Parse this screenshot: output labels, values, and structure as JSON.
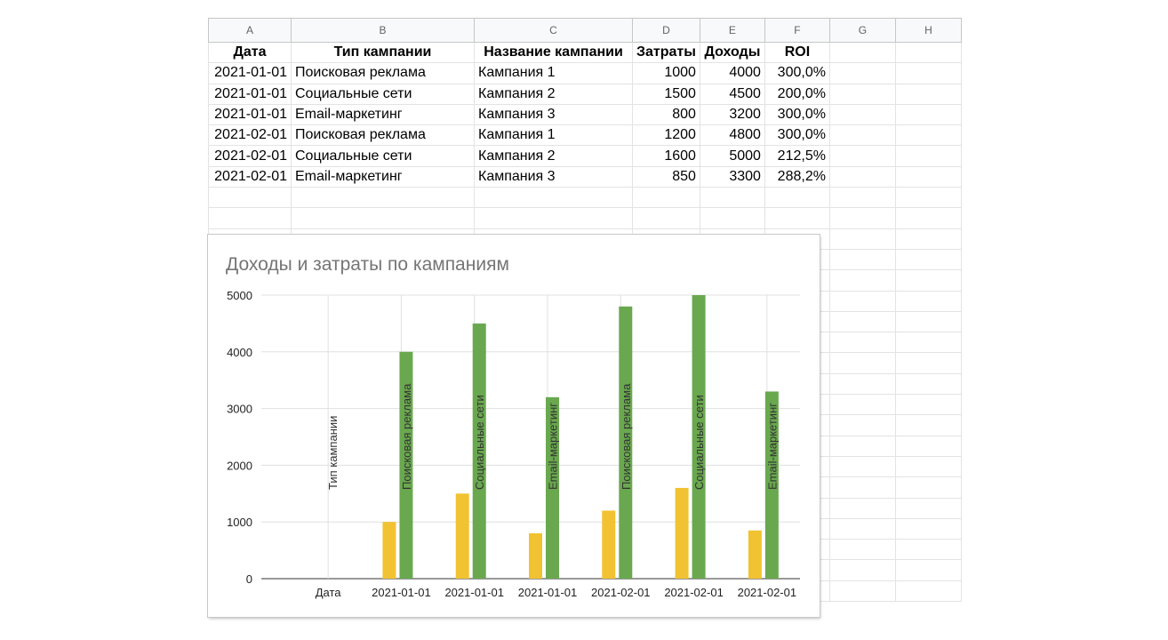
{
  "sheet": {
    "columns": [
      "A",
      "B",
      "C",
      "D",
      "E",
      "F",
      "G",
      "H"
    ],
    "headers": [
      "Дата",
      "Тип кампании",
      "Название кампании",
      "Затраты",
      "Доходы",
      "ROI"
    ],
    "rows": [
      [
        "2021-01-01",
        "Поисковая реклама",
        "Кампания 1",
        "1000",
        "4000",
        "300,0%"
      ],
      [
        "2021-01-01",
        "Социальные сети",
        "Кампания 2",
        "1500",
        "4500",
        "200,0%"
      ],
      [
        "2021-01-01",
        "Email-маркетинг",
        "Кампания 3",
        "800",
        "3200",
        "300,0%"
      ],
      [
        "2021-02-01",
        "Поисковая реклама",
        "Кампания 1",
        "1200",
        "4800",
        "300,0%"
      ],
      [
        "2021-02-01",
        "Социальные сети",
        "Кампания 2",
        "1600",
        "5000",
        "212,5%"
      ],
      [
        "2021-02-01",
        "Email-маркетинг",
        "Кампания 3",
        "850",
        "3300",
        "288,2%"
      ]
    ]
  },
  "colors": {
    "costs": "#f1c232",
    "revenue": "#6aa84f",
    "gridline": "#e0e0e0",
    "axis": "#333333"
  },
  "chart_data": {
    "type": "bar",
    "title": "Доходы и затраты по кампаниям",
    "categories": [
      "Дата",
      "2021-01-01",
      "2021-01-01",
      "2021-01-01",
      "2021-02-01",
      "2021-02-01",
      "2021-02-01"
    ],
    "bar_labels": [
      "Тип кампании",
      "Поисковая реклама",
      "Социальные сети",
      "Email-маркетинг",
      "Поисковая реклама",
      "Социальные сети",
      "Email-маркетинг"
    ],
    "series": [
      {
        "values": [
          null,
          1000,
          1500,
          800,
          1200,
          1600,
          850
        ]
      },
      {
        "values": [
          null,
          4000,
          4500,
          3200,
          4800,
          5000,
          3300
        ]
      }
    ],
    "yticks": [
      0,
      1000,
      2000,
      3000,
      4000,
      5000
    ],
    "ylim": [
      0,
      5000
    ],
    "grid": true,
    "legend": "none"
  }
}
